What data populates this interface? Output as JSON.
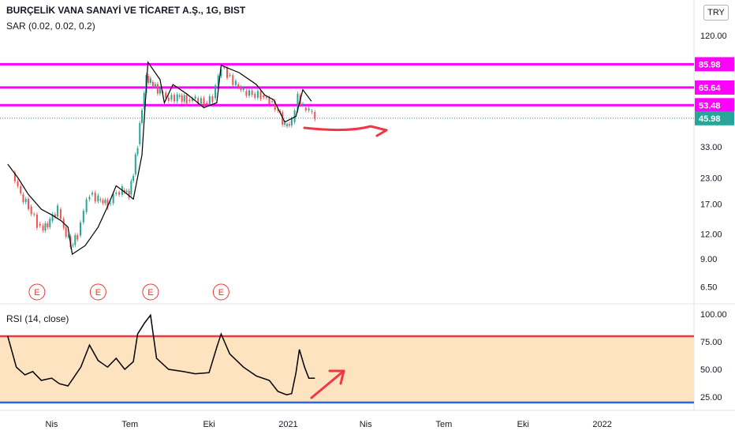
{
  "header": {
    "title": "BURÇELİK VANA SANAYİ VE TİCARET A.Ş., 1G, BIST",
    "sar_label": "SAR (0.02, 0.02, 0.2)",
    "rsi_label": "RSI (14, close)",
    "currency": "TRY"
  },
  "colors": {
    "up": "#26a69a",
    "down": "#ef5350",
    "level_line": "#ff00ff",
    "last_price": "#26a69a",
    "rsi_band": "#fde3bf",
    "rsi_upper": "#f23645",
    "rsi_lower": "#2962ff",
    "annotation": "#f23645"
  },
  "chart_data": [
    {
      "type": "candlestick",
      "title": "BURÇELİK VANA SANAYİ VE TİCARET A.Ş., 1G, BIST",
      "y_scale": "log",
      "y_ticks": [
        120.0,
        85.98,
        65.64,
        53.48,
        45.98,
        33.0,
        23.0,
        17.0,
        12.0,
        9.0,
        6.5
      ],
      "x_ticks": [
        "Nis",
        "Tem",
        "Eki",
        "2021",
        "Nis",
        "Tem",
        "Eki",
        "2022"
      ],
      "price_levels": [
        {
          "value": 85.98,
          "label": "85.98"
        },
        {
          "value": 65.64,
          "label": "65.64"
        },
        {
          "value": 53.48,
          "label": "53.48"
        }
      ],
      "last_price": {
        "value": 45.98,
        "label": "45.98"
      },
      "earnings_markers": [
        "E",
        "E",
        "E",
        "E"
      ],
      "close_series": [
        {
          "x": "2020-02-15",
          "y": 24.5
        },
        {
          "x": "2020-02-25",
          "y": 19.0
        },
        {
          "x": "2020-03-05",
          "y": 16.5
        },
        {
          "x": "2020-03-15",
          "y": 13.5
        },
        {
          "x": "2020-03-22",
          "y": 12.5
        },
        {
          "x": "2020-03-30",
          "y": 14.0
        },
        {
          "x": "2020-04-08",
          "y": 16.0
        },
        {
          "x": "2020-04-15",
          "y": 13.0
        },
        {
          "x": "2020-04-23",
          "y": 10.5
        },
        {
          "x": "2020-05-01",
          "y": 11.8
        },
        {
          "x": "2020-05-08",
          "y": 15.5
        },
        {
          "x": "2020-05-15",
          "y": 19.0
        },
        {
          "x": "2020-05-25",
          "y": 18.0
        },
        {
          "x": "2020-06-05",
          "y": 17.0
        },
        {
          "x": "2020-06-15",
          "y": 19.5
        },
        {
          "x": "2020-06-22",
          "y": 20.0
        },
        {
          "x": "2020-06-30",
          "y": 19.0
        },
        {
          "x": "2020-07-05",
          "y": 24.0
        },
        {
          "x": "2020-07-10",
          "y": 34.0
        },
        {
          "x": "2020-07-15",
          "y": 52.0
        },
        {
          "x": "2020-07-20",
          "y": 75.0
        },
        {
          "x": "2020-07-25",
          "y": 70.0
        },
        {
          "x": "2020-08-05",
          "y": 62.0
        },
        {
          "x": "2020-08-15",
          "y": 57.0
        },
        {
          "x": "2020-08-25",
          "y": 59.0
        },
        {
          "x": "2020-09-05",
          "y": 57.0
        },
        {
          "x": "2020-09-15",
          "y": 58.0
        },
        {
          "x": "2020-09-25",
          "y": 55.0
        },
        {
          "x": "2020-10-05",
          "y": 58.0
        },
        {
          "x": "2020-10-15",
          "y": 83.0
        },
        {
          "x": "2020-10-22",
          "y": 76.0
        },
        {
          "x": "2020-11-01",
          "y": 68.0
        },
        {
          "x": "2020-11-10",
          "y": 63.0
        },
        {
          "x": "2020-11-20",
          "y": 61.0
        },
        {
          "x": "2020-11-30",
          "y": 60.0
        },
        {
          "x": "2020-12-10",
          "y": 56.0
        },
        {
          "x": "2020-12-20",
          "y": 50.0
        },
        {
          "x": "2020-12-28",
          "y": 42.0
        },
        {
          "x": "2021-01-05",
          "y": 44.0
        },
        {
          "x": "2021-01-12",
          "y": 60.0
        },
        {
          "x": "2021-01-18",
          "y": 52.0
        },
        {
          "x": "2021-01-25",
          "y": 50.0
        },
        {
          "x": "2021-02-01",
          "y": 46.0
        }
      ],
      "sar_series": [
        {
          "x": "2020-02-10",
          "y": 27.0
        },
        {
          "x": "2020-02-22",
          "y": 23.0
        },
        {
          "x": "2020-03-05",
          "y": 19.0
        },
        {
          "x": "2020-03-20",
          "y": 16.0
        },
        {
          "x": "2020-04-01",
          "y": 15.0
        },
        {
          "x": "2020-04-12",
          "y": 14.0
        },
        {
          "x": "2020-04-20",
          "y": 13.0
        },
        {
          "x": "2020-04-25",
          "y": 9.5
        },
        {
          "x": "2020-05-10",
          "y": 10.5
        },
        {
          "x": "2020-05-25",
          "y": 13.0
        },
        {
          "x": "2020-06-05",
          "y": 16.5
        },
        {
          "x": "2020-06-15",
          "y": 21.0
        },
        {
          "x": "2020-06-25",
          "y": 19.5
        },
        {
          "x": "2020-07-05",
          "y": 18.0
        },
        {
          "x": "2020-07-15",
          "y": 30.0
        },
        {
          "x": "2020-07-22",
          "y": 88.0
        },
        {
          "x": "2020-08-05",
          "y": 72.0
        },
        {
          "x": "2020-08-10",
          "y": 55.0
        },
        {
          "x": "2020-08-20",
          "y": 68.0
        },
        {
          "x": "2020-09-05",
          "y": 61.0
        },
        {
          "x": "2020-09-25",
          "y": 52.0
        },
        {
          "x": "2020-10-10",
          "y": 55.0
        },
        {
          "x": "2020-10-15",
          "y": 85.0
        },
        {
          "x": "2020-11-05",
          "y": 78.0
        },
        {
          "x": "2020-11-25",
          "y": 68.0
        },
        {
          "x": "2020-12-05",
          "y": 60.0
        },
        {
          "x": "2020-12-15",
          "y": 57.0
        },
        {
          "x": "2020-12-28",
          "y": 44.0
        },
        {
          "x": "2021-01-10",
          "y": 47.0
        },
        {
          "x": "2021-01-18",
          "y": 64.0
        },
        {
          "x": "2021-01-28",
          "y": 56.0
        }
      ]
    },
    {
      "type": "line",
      "title": "RSI (14, close)",
      "y_ticks": [
        100.0,
        75.0,
        50.0,
        25.0
      ],
      "ylim": [
        20,
        100
      ],
      "band": [
        20,
        80
      ],
      "series": [
        {
          "x": "2020-02-10",
          "y": 80
        },
        {
          "x": "2020-02-20",
          "y": 52
        },
        {
          "x": "2020-03-01",
          "y": 45
        },
        {
          "x": "2020-03-10",
          "y": 48
        },
        {
          "x": "2020-03-20",
          "y": 40
        },
        {
          "x": "2020-04-01",
          "y": 42
        },
        {
          "x": "2020-04-10",
          "y": 37
        },
        {
          "x": "2020-04-20",
          "y": 35
        },
        {
          "x": "2020-05-05",
          "y": 52
        },
        {
          "x": "2020-05-15",
          "y": 72
        },
        {
          "x": "2020-05-25",
          "y": 58
        },
        {
          "x": "2020-06-05",
          "y": 52
        },
        {
          "x": "2020-06-15",
          "y": 60
        },
        {
          "x": "2020-06-25",
          "y": 50
        },
        {
          "x": "2020-07-05",
          "y": 57
        },
        {
          "x": "2020-07-10",
          "y": 82
        },
        {
          "x": "2020-07-18",
          "y": 92
        },
        {
          "x": "2020-07-25",
          "y": 99
        },
        {
          "x": "2020-08-01",
          "y": 60
        },
        {
          "x": "2020-08-15",
          "y": 50
        },
        {
          "x": "2020-09-01",
          "y": 48
        },
        {
          "x": "2020-09-15",
          "y": 46
        },
        {
          "x": "2020-10-01",
          "y": 47
        },
        {
          "x": "2020-10-10",
          "y": 70
        },
        {
          "x": "2020-10-15",
          "y": 82
        },
        {
          "x": "2020-10-25",
          "y": 64
        },
        {
          "x": "2020-11-10",
          "y": 52
        },
        {
          "x": "2020-11-25",
          "y": 44
        },
        {
          "x": "2020-12-10",
          "y": 40
        },
        {
          "x": "2020-12-20",
          "y": 30
        },
        {
          "x": "2020-12-30",
          "y": 27
        },
        {
          "x": "2021-01-05",
          "y": 28
        },
        {
          "x": "2021-01-10",
          "y": 47
        },
        {
          "x": "2021-01-14",
          "y": 68
        },
        {
          "x": "2021-01-20",
          "y": 52
        },
        {
          "x": "2021-01-25",
          "y": 42
        },
        {
          "x": "2021-02-01",
          "y": 42
        }
      ]
    }
  ]
}
